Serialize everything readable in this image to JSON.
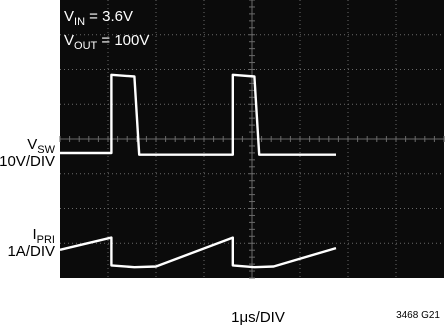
{
  "chart_data": {
    "type": "line",
    "title": "",
    "annotations": {
      "vin": {
        "main": "V",
        "sub": "IN",
        "rest": " = 3.6V"
      },
      "vout": {
        "main": "V",
        "sub": "OUT",
        "rest": " = 100V"
      }
    },
    "timebase": {
      "prefix": "1",
      "mu": "μ",
      "suffix": "s/DIV"
    },
    "figure_id": "3468 G21",
    "divisions": {
      "x": 8,
      "y": 8
    },
    "colors": {
      "screen": "#0b0b0b",
      "grid": "#6a6a6a",
      "trace": "#ffffff",
      "annotation": "#ffffff"
    },
    "series": [
      {
        "label_main": "V",
        "label_sub": "SW",
        "scale": "10V/DIV",
        "x": [
          0,
          1.07,
          1.07,
          1.55,
          1.65,
          3.6,
          3.6,
          4.05,
          4.15,
          5.75
        ],
        "y": [
          0,
          0,
          2.25,
          2.2,
          -0.05,
          -0.05,
          2.25,
          2.2,
          -0.05,
          -0.05
        ]
      },
      {
        "label_main": "I",
        "label_sub": "PRI",
        "scale": "1A/DIV",
        "x": [
          0,
          1.07,
          1.07,
          1.55,
          2.0,
          3.6,
          3.6,
          4.05,
          4.45,
          5.75
        ],
        "y": [
          0.15,
          0.5,
          -0.3,
          -0.35,
          -0.33,
          0.5,
          -0.3,
          -0.35,
          -0.33,
          0.2
        ]
      }
    ]
  }
}
